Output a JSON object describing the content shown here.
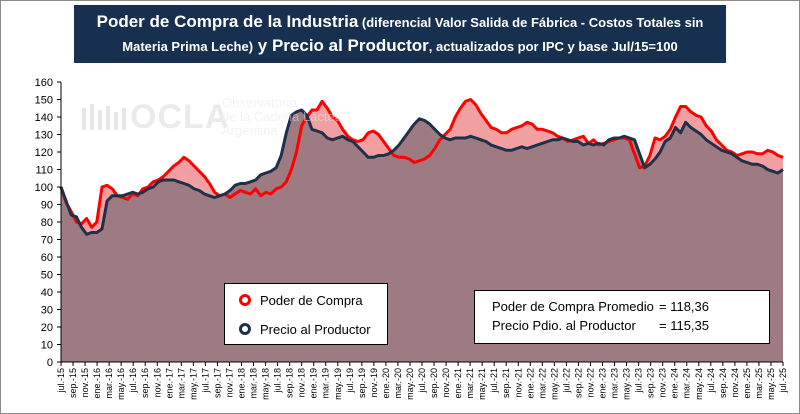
{
  "title": {
    "part1": "Poder de Compra de la Industria",
    "part2": " (diferencial Valor Salida de Fábrica - Costos Totales sin",
    "part3": "Materia Prima Leche)",
    "part4": " y Precio al Productor",
    "part5": ", actualizados por IPC y base Jul/15=100"
  },
  "watermark": {
    "logo": "OCLA",
    "line1": "Observatorio",
    "line2": "de la Cadena Láctea",
    "line3": "Argentina"
  },
  "legend": [
    {
      "label": "Poder de Compra",
      "color": "#ff0000"
    },
    {
      "label": "Precio al Productor",
      "color": "#1f3049"
    }
  ],
  "stats": [
    {
      "label": "Poder de Compra Promedio",
      "value": "=  118,36"
    },
    {
      "label": "Precio Pdio. al Productor",
      "value": "=   115,35"
    }
  ],
  "colors": {
    "poder": "#ff0000",
    "precio": "#1f3049",
    "fill_poder": "#f0a0a0",
    "fill_precio": "#9e7a82",
    "title_bg": "#17304f"
  },
  "chart_data": {
    "type": "area",
    "ylim": [
      0,
      160
    ],
    "yticks": [
      0,
      10,
      20,
      30,
      40,
      50,
      60,
      70,
      80,
      90,
      100,
      110,
      120,
      130,
      140,
      150,
      160
    ],
    "grid": false,
    "x_tick_labels": [
      "jul.-15",
      "sep.-15",
      "nov.-15",
      "ene.-16",
      "mar.-16",
      "may.-16",
      "jul.-16",
      "sep.-16",
      "nov.-16",
      "ene.-17",
      "mar.-17",
      "may.-17",
      "jul.-17",
      "sep.-17",
      "nov.-17",
      "ene.-18",
      "mar.-18",
      "may.-18",
      "jul.-18",
      "sep.-18",
      "nov.-18",
      "ene.-19",
      "mar.-19",
      "may.-19",
      "jul.-19",
      "sep.-19",
      "nov.-19",
      "ene.-20",
      "mar.-20",
      "may.-20",
      "jul.-20",
      "sep.-20",
      "nov.-20",
      "ene.-21",
      "mar.-21",
      "may.-21",
      "jul.-21",
      "sep.-21",
      "nov.-21",
      "ene.-22",
      "mar.-22",
      "may.-22",
      "jul.-22",
      "sep.-22",
      "nov.-22",
      "ene.-23",
      "mar.-23",
      "may.-23",
      "jul.-23",
      "sep.-23",
      "nov.-23",
      "ene.-24",
      "mar.-24",
      "may.-24",
      "jul.-24",
      "sep.-24",
      "nov.-24",
      "ene.-25",
      "mar.-25",
      "may.-25",
      "jul.-25"
    ],
    "x_start": "jul.-15",
    "x_end": "jul.-25",
    "series": [
      {
        "name": "Poder de Compra",
        "values": [
          100,
          91,
          86,
          80,
          79,
          82,
          77,
          80,
          100,
          101,
          99,
          95,
          94,
          93,
          96,
          95,
          99,
          100,
          103,
          104,
          106,
          109,
          112,
          114,
          117,
          115,
          112,
          109,
          106,
          102,
          97,
          95,
          96,
          94,
          96,
          98,
          97,
          96,
          99,
          95,
          97,
          96,
          99,
          100,
          103,
          110,
          120,
          135,
          140,
          144,
          144,
          149,
          145,
          140,
          138,
          133,
          129,
          127,
          126,
          127,
          131,
          132,
          130,
          126,
          122,
          118,
          117,
          117,
          116,
          114,
          115,
          116,
          118,
          122,
          127,
          130,
          133,
          140,
          145,
          149,
          150,
          147,
          142,
          138,
          134,
          133,
          131,
          131,
          133,
          134,
          135,
          137,
          136,
          133,
          133,
          132,
          131,
          129,
          128,
          126,
          127,
          128,
          129,
          125,
          127,
          124,
          125,
          126,
          127,
          128,
          128,
          127,
          119,
          111,
          112,
          118,
          128,
          127,
          129,
          133,
          140,
          146,
          146,
          143,
          141,
          140,
          135,
          132,
          127,
          124,
          121,
          120,
          118,
          119,
          120,
          120,
          119,
          119,
          121,
          120,
          118,
          117
        ]
      },
      {
        "name": "Precio al Productor",
        "values": [
          100,
          92,
          84,
          83,
          77,
          73,
          74,
          74,
          76,
          92,
          95,
          95,
          95,
          96,
          97,
          96,
          97,
          99,
          100,
          103,
          104,
          104,
          104,
          103,
          102,
          101,
          99,
          98,
          96,
          95,
          94,
          95,
          96,
          98,
          101,
          102,
          102,
          103,
          104,
          107,
          108,
          109,
          111,
          118,
          131,
          141,
          143,
          144,
          141,
          133,
          132,
          131,
          128,
          127,
          128,
          129,
          127,
          126,
          123,
          120,
          117,
          117,
          118,
          118,
          119,
          121,
          124,
          128,
          132,
          136,
          139,
          138,
          136,
          133,
          130,
          128,
          127,
          128,
          128,
          128,
          129,
          128,
          127,
          126,
          124,
          123,
          122,
          121,
          121,
          122,
          123,
          122,
          123,
          124,
          125,
          126,
          127,
          127,
          128,
          127,
          126,
          126,
          124,
          125,
          124,
          125,
          124,
          127,
          128,
          128,
          129,
          128,
          127,
          119,
          111,
          113,
          116,
          120,
          126,
          128,
          134,
          131,
          137,
          134,
          132,
          130,
          127,
          125,
          123,
          121,
          120,
          119,
          117,
          115,
          114,
          113,
          113,
          112,
          110,
          109,
          108,
          110
        ]
      }
    ]
  }
}
